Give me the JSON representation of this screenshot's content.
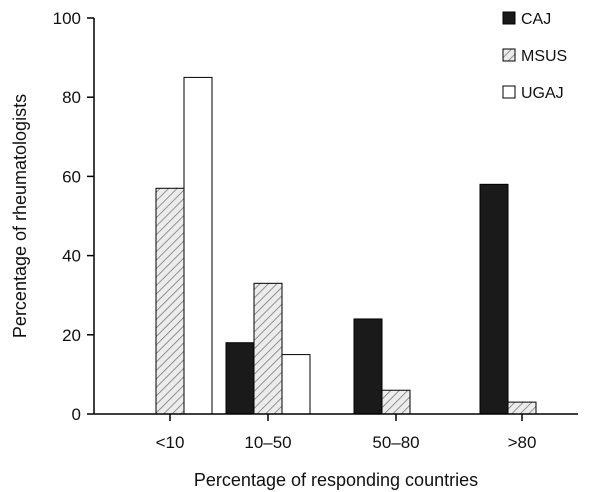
{
  "chart_data": {
    "type": "bar",
    "title": "",
    "xlabel": "Percentage of responding countries",
    "ylabel": "Percentage of rheumatologists",
    "categories": [
      "<10",
      "10–50",
      "50–80",
      ">80"
    ],
    "ylim": [
      0,
      100
    ],
    "yticks": [
      0,
      20,
      40,
      60,
      80,
      100
    ],
    "grid": false,
    "legend_position": "top-right",
    "series": [
      {
        "name": "CAJ",
        "values": [
          0,
          18,
          24,
          58
        ],
        "pattern": "solid",
        "color": "#1a1a1a"
      },
      {
        "name": "MSUS",
        "values": [
          57,
          33,
          6,
          3
        ],
        "pattern": "hatched",
        "color": "#dddddd"
      },
      {
        "name": "UGAJ",
        "values": [
          85,
          15,
          0,
          0
        ],
        "pattern": "empty",
        "color": "#ffffff"
      }
    ]
  }
}
